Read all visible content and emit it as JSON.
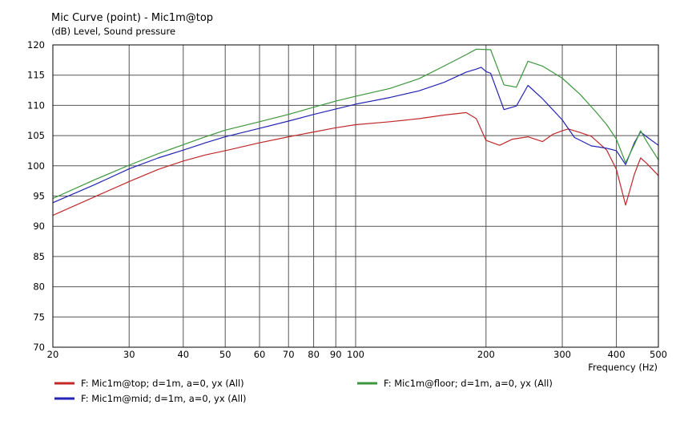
{
  "chart_data": {
    "type": "line",
    "title": "Mic Curve (point) - Mic1m@top",
    "subtitle": "(dB)  Level, Sound pressure",
    "xlabel": "Frequency  (Hz)",
    "x_scale": "log",
    "xlim": [
      20,
      500
    ],
    "ylim": [
      70,
      120
    ],
    "grid": true,
    "legend_position": "bottom",
    "x_ticks": [
      20,
      30,
      40,
      50,
      60,
      70,
      80,
      90,
      100,
      200,
      300,
      400,
      500
    ],
    "y_ticks": [
      70,
      75,
      80,
      85,
      90,
      95,
      100,
      105,
      110,
      115,
      120
    ],
    "series": [
      {
        "name": "F: Mic1m@top; d=1m, a=0, yx  (All)",
        "color": "#c0282a",
        "points": [
          [
            20,
            91.8
          ],
          [
            25,
            94.9
          ],
          [
            30,
            97.4
          ],
          [
            35,
            99.4
          ],
          [
            40,
            100.8
          ],
          [
            45,
            101.8
          ],
          [
            50,
            102.5
          ],
          [
            60,
            103.8
          ],
          [
            70,
            104.8
          ],
          [
            80,
            105.6
          ],
          [
            90,
            106.3
          ],
          [
            100,
            106.8
          ],
          [
            120,
            107.3
          ],
          [
            140,
            107.8
          ],
          [
            160,
            108.4
          ],
          [
            180,
            108.8
          ],
          [
            190,
            107.8
          ],
          [
            200,
            104.2
          ],
          [
            215,
            103.4
          ],
          [
            230,
            104.4
          ],
          [
            250,
            104.8
          ],
          [
            270,
            104.0
          ],
          [
            285,
            105.2
          ],
          [
            300,
            105.8
          ],
          [
            310,
            106.1
          ],
          [
            330,
            105.5
          ],
          [
            350,
            104.9
          ],
          [
            380,
            102.6
          ],
          [
            400,
            99.4
          ],
          [
            420,
            93.5
          ],
          [
            440,
            98.6
          ],
          [
            455,
            101.3
          ],
          [
            470,
            100.4
          ],
          [
            500,
            98.4
          ]
        ]
      },
      {
        "name": "F: Mic1m@mid; d=1m, a=0, yx  (All)",
        "color": "#2323b4",
        "points": [
          [
            20,
            93.9
          ],
          [
            25,
            96.9
          ],
          [
            30,
            99.5
          ],
          [
            35,
            101.3
          ],
          [
            40,
            102.6
          ],
          [
            45,
            103.8
          ],
          [
            50,
            104.8
          ],
          [
            60,
            106.2
          ],
          [
            70,
            107.4
          ],
          [
            80,
            108.5
          ],
          [
            90,
            109.4
          ],
          [
            100,
            110.2
          ],
          [
            120,
            111.3
          ],
          [
            140,
            112.4
          ],
          [
            160,
            113.8
          ],
          [
            180,
            115.5
          ],
          [
            190,
            116.0
          ],
          [
            195,
            116.3
          ],
          [
            200,
            115.6
          ],
          [
            205,
            115.3
          ],
          [
            220,
            109.3
          ],
          [
            235,
            109.9
          ],
          [
            250,
            113.3
          ],
          [
            270,
            111.1
          ],
          [
            300,
            107.6
          ],
          [
            320,
            104.7
          ],
          [
            350,
            103.3
          ],
          [
            380,
            102.9
          ],
          [
            400,
            102.5
          ],
          [
            420,
            100.2
          ],
          [
            440,
            103.8
          ],
          [
            455,
            105.6
          ],
          [
            470,
            104.8
          ],
          [
            500,
            103.4
          ]
        ]
      },
      {
        "name": "F: Mic1m@floor; d=1m, a=0, yx  (All)",
        "color": "#3c963c",
        "points": [
          [
            20,
            94.6
          ],
          [
            25,
            97.7
          ],
          [
            30,
            100.1
          ],
          [
            35,
            102.0
          ],
          [
            40,
            103.5
          ],
          [
            45,
            104.8
          ],
          [
            50,
            105.9
          ],
          [
            60,
            107.3
          ],
          [
            70,
            108.5
          ],
          [
            80,
            109.7
          ],
          [
            90,
            110.7
          ],
          [
            100,
            111.5
          ],
          [
            120,
            112.8
          ],
          [
            140,
            114.4
          ],
          [
            160,
            116.5
          ],
          [
            180,
            118.4
          ],
          [
            190,
            119.3
          ],
          [
            205,
            119.2
          ],
          [
            220,
            113.4
          ],
          [
            235,
            113.0
          ],
          [
            250,
            117.3
          ],
          [
            270,
            116.5
          ],
          [
            300,
            114.5
          ],
          [
            330,
            111.8
          ],
          [
            360,
            108.8
          ],
          [
            380,
            106.8
          ],
          [
            400,
            104.4
          ],
          [
            420,
            100.5
          ],
          [
            440,
            103.5
          ],
          [
            455,
            105.8
          ],
          [
            470,
            104.0
          ],
          [
            500,
            101.0
          ]
        ]
      }
    ]
  }
}
